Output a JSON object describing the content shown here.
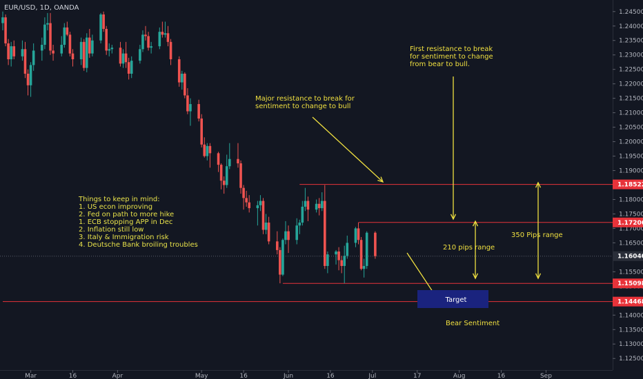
{
  "chart_data": {
    "type": "candlestick",
    "title": "EUR/USD, 1D, OANDA",
    "ylim": [
      1.121,
      1.249
    ],
    "y_ticks": [
      1.245,
      1.24,
      1.235,
      1.23,
      1.225,
      1.22,
      1.215,
      1.21,
      1.205,
      1.2,
      1.195,
      1.19,
      1.185,
      1.18,
      1.175,
      1.17,
      1.165,
      1.16,
      1.155,
      1.15,
      1.145,
      1.14,
      1.135,
      1.13,
      1.125
    ],
    "y_tick_labels": [
      "1.24500",
      "1.24000",
      "1.23500",
      "1.23000",
      "1.22500",
      "1.22000",
      "1.21500",
      "1.21000",
      "1.20500",
      "1.20000",
      "1.19500",
      "1.19000",
      "1.18500",
      "1.18000",
      "1.17500",
      "1.17000",
      "1.16500",
      "1.16000",
      "1.15500",
      "1.15000",
      "1.14500",
      "1.14000",
      "1.13500",
      "1.13000",
      "1.12500"
    ],
    "x_range": [
      "2018-02-19",
      "2018-09-10"
    ],
    "x_ticks": [
      {
        "date": "2018-03-01",
        "label": "Mar"
      },
      {
        "date": "2018-03-16",
        "label": "16"
      },
      {
        "date": "2018-04-01",
        "label": "Apr"
      },
      {
        "date": "2018-05-01",
        "label": "May"
      },
      {
        "date": "2018-05-16",
        "label": "16"
      },
      {
        "date": "2018-06-01",
        "label": "Jun"
      },
      {
        "date": "2018-06-16",
        "label": "16"
      },
      {
        "date": "2018-07-01",
        "label": "Jul"
      },
      {
        "date": "2018-07-17",
        "label": "17"
      },
      {
        "date": "2018-08-01",
        "label": "Aug"
      },
      {
        "date": "2018-08-16",
        "label": "16"
      },
      {
        "date": "2018-09-01",
        "label": "Sep"
      }
    ],
    "grid": false,
    "current_price": {
      "value": 1.1604,
      "label": "1.16040",
      "color": "#5b5f6b"
    },
    "levels": [
      {
        "value": 1.18522,
        "label": "1.18522",
        "start": "2018-06-05"
      },
      {
        "value": 1.17206,
        "label": "1.17206",
        "start": "2018-06-26"
      },
      {
        "value": 1.15098,
        "label": "1.15098",
        "start": "2018-05-30"
      },
      {
        "value": 1.14468,
        "label": "1.14468",
        "start": "2018-02-19"
      }
    ],
    "level_color": "#e8333a",
    "up_color": "#26a69a",
    "down_color": "#ef5350",
    "candles": [
      {
        "d": "2018-02-19",
        "o": 1.241,
        "h": 1.245,
        "l": 1.2385,
        "c": 1.243
      },
      {
        "d": "2018-02-20",
        "o": 1.243,
        "h": 1.244,
        "l": 1.233,
        "c": 1.234
      },
      {
        "d": "2018-02-21",
        "o": 1.234,
        "h": 1.2355,
        "l": 1.2265,
        "c": 1.2285
      },
      {
        "d": "2018-02-22",
        "o": 1.2285,
        "h": 1.2345,
        "l": 1.226,
        "c": 1.233
      },
      {
        "d": "2018-02-23",
        "o": 1.233,
        "h": 1.235,
        "l": 1.2285,
        "c": 1.2295
      },
      {
        "d": "2018-02-26",
        "o": 1.2295,
        "h": 1.235,
        "l": 1.228,
        "c": 1.232
      },
      {
        "d": "2018-02-27",
        "o": 1.232,
        "h": 1.2345,
        "l": 1.222,
        "c": 1.2235
      },
      {
        "d": "2018-02-28",
        "o": 1.2235,
        "h": 1.225,
        "l": 1.216,
        "c": 1.2195
      },
      {
        "d": "2018-03-01",
        "o": 1.2195,
        "h": 1.2275,
        "l": 1.2155,
        "c": 1.2265
      },
      {
        "d": "2018-03-02",
        "o": 1.2265,
        "h": 1.234,
        "l": 1.2245,
        "c": 1.2315
      },
      {
        "d": "2018-03-05",
        "o": 1.2315,
        "h": 1.236,
        "l": 1.228,
        "c": 1.2335
      },
      {
        "d": "2018-03-06",
        "o": 1.2335,
        "h": 1.243,
        "l": 1.232,
        "c": 1.2405
      },
      {
        "d": "2018-03-07",
        "o": 1.2405,
        "h": 1.2445,
        "l": 1.2385,
        "c": 1.241
      },
      {
        "d": "2018-03-08",
        "o": 1.241,
        "h": 1.2445,
        "l": 1.23,
        "c": 1.2315
      },
      {
        "d": "2018-03-09",
        "o": 1.2315,
        "h": 1.2335,
        "l": 1.228,
        "c": 1.2305
      },
      {
        "d": "2018-03-12",
        "o": 1.2305,
        "h": 1.2365,
        "l": 1.2295,
        "c": 1.2335
      },
      {
        "d": "2018-03-13",
        "o": 1.2335,
        "h": 1.241,
        "l": 1.2325,
        "c": 1.2395
      },
      {
        "d": "2018-03-14",
        "o": 1.2395,
        "h": 1.2415,
        "l": 1.2365,
        "c": 1.237
      },
      {
        "d": "2018-03-15",
        "o": 1.237,
        "h": 1.238,
        "l": 1.2295,
        "c": 1.2305
      },
      {
        "d": "2018-03-16",
        "o": 1.2305,
        "h": 1.232,
        "l": 1.226,
        "c": 1.2285
      },
      {
        "d": "2018-03-19",
        "o": 1.2285,
        "h": 1.236,
        "l": 1.2265,
        "c": 1.2345
      },
      {
        "d": "2018-03-20",
        "o": 1.2345,
        "h": 1.2355,
        "l": 1.2245,
        "c": 1.2255
      },
      {
        "d": "2018-03-21",
        "o": 1.2255,
        "h": 1.2375,
        "l": 1.224,
        "c": 1.236
      },
      {
        "d": "2018-03-22",
        "o": 1.236,
        "h": 1.239,
        "l": 1.229,
        "c": 1.2305
      },
      {
        "d": "2018-03-23",
        "o": 1.2305,
        "h": 1.237,
        "l": 1.2295,
        "c": 1.235
      },
      {
        "d": "2018-03-26",
        "o": 1.235,
        "h": 1.2445,
        "l": 1.234,
        "c": 1.244
      },
      {
        "d": "2018-03-27",
        "o": 1.244,
        "h": 1.245,
        "l": 1.238,
        "c": 1.239
      },
      {
        "d": "2018-03-28",
        "o": 1.239,
        "h": 1.24,
        "l": 1.23,
        "c": 1.2315
      },
      {
        "d": "2018-03-29",
        "o": 1.2315,
        "h": 1.234,
        "l": 1.2295,
        "c": 1.232
      },
      {
        "d": "2018-03-30",
        "o": 1.232,
        "h": 1.2335,
        "l": 1.2305,
        "c": 1.2325
      },
      {
        "d": "2018-04-02",
        "o": 1.2325,
        "h": 1.2345,
        "l": 1.226,
        "c": 1.227
      },
      {
        "d": "2018-04-03",
        "o": 1.227,
        "h": 1.232,
        "l": 1.2255,
        "c": 1.2305
      },
      {
        "d": "2018-04-04",
        "o": 1.2305,
        "h": 1.2345,
        "l": 1.2255,
        "c": 1.2275
      },
      {
        "d": "2018-04-05",
        "o": 1.2275,
        "h": 1.229,
        "l": 1.2215,
        "c": 1.2235
      },
      {
        "d": "2018-04-06",
        "o": 1.2235,
        "h": 1.2295,
        "l": 1.222,
        "c": 1.228
      },
      {
        "d": "2018-04-09",
        "o": 1.228,
        "h": 1.2335,
        "l": 1.227,
        "c": 1.232
      },
      {
        "d": "2018-04-10",
        "o": 1.232,
        "h": 1.2385,
        "l": 1.231,
        "c": 1.237
      },
      {
        "d": "2018-04-11",
        "o": 1.237,
        "h": 1.24,
        "l": 1.235,
        "c": 1.2365
      },
      {
        "d": "2018-04-12",
        "o": 1.2365,
        "h": 1.238,
        "l": 1.2315,
        "c": 1.2325
      },
      {
        "d": "2018-04-13",
        "o": 1.2325,
        "h": 1.2345,
        "l": 1.2305,
        "c": 1.233
      },
      {
        "d": "2018-04-16",
        "o": 1.233,
        "h": 1.2395,
        "l": 1.232,
        "c": 1.238
      },
      {
        "d": "2018-04-17",
        "o": 1.238,
        "h": 1.2415,
        "l": 1.236,
        "c": 1.237
      },
      {
        "d": "2018-04-18",
        "o": 1.237,
        "h": 1.2415,
        "l": 1.236,
        "c": 1.2375
      },
      {
        "d": "2018-04-19",
        "o": 1.2375,
        "h": 1.24,
        "l": 1.233,
        "c": 1.2345
      },
      {
        "d": "2018-04-20",
        "o": 1.2345,
        "h": 1.2355,
        "l": 1.2265,
        "c": 1.2285
      },
      {
        "d": "2018-04-23",
        "o": 1.2285,
        "h": 1.2295,
        "l": 1.219,
        "c": 1.2205
      },
      {
        "d": "2018-04-24",
        "o": 1.2205,
        "h": 1.2245,
        "l": 1.218,
        "c": 1.2235
      },
      {
        "d": "2018-04-25",
        "o": 1.2235,
        "h": 1.224,
        "l": 1.215,
        "c": 1.216
      },
      {
        "d": "2018-04-26",
        "o": 1.216,
        "h": 1.2185,
        "l": 1.2095,
        "c": 1.2105
      },
      {
        "d": "2018-04-27",
        "o": 1.2105,
        "h": 1.215,
        "l": 1.2055,
        "c": 1.213
      },
      {
        "d": "2018-04-30",
        "o": 1.213,
        "h": 1.2145,
        "l": 1.207,
        "c": 1.208
      },
      {
        "d": "2018-05-01",
        "o": 1.208,
        "h": 1.2095,
        "l": 1.198,
        "c": 1.199
      },
      {
        "d": "2018-05-02",
        "o": 1.199,
        "h": 1.2015,
        "l": 1.1945,
        "c": 1.195
      },
      {
        "d": "2018-05-03",
        "o": 1.195,
        "h": 1.1995,
        "l": 1.1935,
        "c": 1.1985
      },
      {
        "d": "2018-05-04",
        "o": 1.1985,
        "h": 1.1995,
        "l": 1.191,
        "c": 1.196
      },
      {
        "d": "2018-05-07",
        "o": 1.196,
        "h": 1.1965,
        "l": 1.1895,
        "c": 1.192
      },
      {
        "d": "2018-05-08",
        "o": 1.192,
        "h": 1.1925,
        "l": 1.1835,
        "c": 1.1865
      },
      {
        "d": "2018-05-09",
        "o": 1.1865,
        "h": 1.188,
        "l": 1.182,
        "c": 1.185
      },
      {
        "d": "2018-05-10",
        "o": 1.185,
        "h": 1.1955,
        "l": 1.184,
        "c": 1.1915
      },
      {
        "d": "2018-05-11",
        "o": 1.1915,
        "h": 1.1995,
        "l": 1.1905,
        "c": 1.194
      },
      {
        "d": "2018-05-14",
        "o": 1.194,
        "h": 1.1995,
        "l": 1.191,
        "c": 1.1925
      },
      {
        "d": "2018-05-15",
        "o": 1.1925,
        "h": 1.1935,
        "l": 1.182,
        "c": 1.184
      },
      {
        "d": "2018-05-16",
        "o": 1.184,
        "h": 1.185,
        "l": 1.1765,
        "c": 1.1805
      },
      {
        "d": "2018-05-17",
        "o": 1.1805,
        "h": 1.183,
        "l": 1.1775,
        "c": 1.179
      },
      {
        "d": "2018-05-18",
        "o": 1.179,
        "h": 1.1815,
        "l": 1.1755,
        "c": 1.177
      },
      {
        "d": "2018-05-21",
        "o": 1.177,
        "h": 1.1795,
        "l": 1.171,
        "c": 1.178
      },
      {
        "d": "2018-05-22",
        "o": 1.178,
        "h": 1.1815,
        "l": 1.176,
        "c": 1.1795
      },
      {
        "d": "2018-05-23",
        "o": 1.1795,
        "h": 1.1805,
        "l": 1.168,
        "c": 1.1695
      },
      {
        "d": "2018-05-24",
        "o": 1.1695,
        "h": 1.175,
        "l": 1.168,
        "c": 1.172
      },
      {
        "d": "2018-05-25",
        "o": 1.172,
        "h": 1.174,
        "l": 1.1645,
        "c": 1.1655
      },
      {
        "d": "2018-05-28",
        "o": 1.1655,
        "h": 1.169,
        "l": 1.161,
        "c": 1.1625
      },
      {
        "d": "2018-05-29",
        "o": 1.1625,
        "h": 1.1635,
        "l": 1.151,
        "c": 1.154
      },
      {
        "d": "2018-05-30",
        "o": 1.154,
        "h": 1.1665,
        "l": 1.1535,
        "c": 1.166
      },
      {
        "d": "2018-05-31",
        "o": 1.166,
        "h": 1.1725,
        "l": 1.1645,
        "c": 1.169
      },
      {
        "d": "2018-06-01",
        "o": 1.169,
        "h": 1.171,
        "l": 1.1615,
        "c": 1.166
      },
      {
        "d": "2018-06-04",
        "o": 1.166,
        "h": 1.1735,
        "l": 1.1645,
        "c": 1.171
      },
      {
        "d": "2018-06-05",
        "o": 1.171,
        "h": 1.173,
        "l": 1.168,
        "c": 1.172
      },
      {
        "d": "2018-06-06",
        "o": 1.172,
        "h": 1.1795,
        "l": 1.171,
        "c": 1.1775
      },
      {
        "d": "2018-06-07",
        "o": 1.1775,
        "h": 1.184,
        "l": 1.176,
        "c": 1.1795
      },
      {
        "d": "2018-06-08",
        "o": 1.1795,
        "h": 1.181,
        "l": 1.1725,
        "c": 1.1765
      },
      {
        "d": "2018-06-11",
        "o": 1.1765,
        "h": 1.18,
        "l": 1.1755,
        "c": 1.1785
      },
      {
        "d": "2018-06-12",
        "o": 1.1785,
        "h": 1.1805,
        "l": 1.1745,
        "c": 1.177
      },
      {
        "d": "2018-06-13",
        "o": 1.177,
        "h": 1.1825,
        "l": 1.176,
        "c": 1.1795
      },
      {
        "d": "2018-06-14",
        "o": 1.1795,
        "h": 1.185,
        "l": 1.156,
        "c": 1.157
      },
      {
        "d": "2018-06-15",
        "o": 1.157,
        "h": 1.162,
        "l": 1.1545,
        "c": 1.161
      },
      {
        "d": "2018-06-18",
        "o": 1.161,
        "h": 1.1625,
        "l": 1.1575,
        "c": 1.162
      },
      {
        "d": "2018-06-19",
        "o": 1.162,
        "h": 1.1635,
        "l": 1.1555,
        "c": 1.159
      },
      {
        "d": "2018-06-20",
        "o": 1.159,
        "h": 1.1605,
        "l": 1.1545,
        "c": 1.157
      },
      {
        "d": "2018-06-21",
        "o": 1.157,
        "h": 1.164,
        "l": 1.151,
        "c": 1.1605
      },
      {
        "d": "2018-06-22",
        "o": 1.1605,
        "h": 1.1675,
        "l": 1.1595,
        "c": 1.165
      },
      {
        "d": "2018-06-25",
        "o": 1.165,
        "h": 1.1705,
        "l": 1.1635,
        "c": 1.17
      },
      {
        "d": "2018-06-26",
        "o": 1.17,
        "h": 1.172,
        "l": 1.1645,
        "c": 1.166
      },
      {
        "d": "2018-06-27",
        "o": 1.166,
        "h": 1.167,
        "l": 1.1555,
        "c": 1.156
      },
      {
        "d": "2018-06-28",
        "o": 1.156,
        "h": 1.1595,
        "l": 1.153,
        "c": 1.157
      },
      {
        "d": "2018-06-29",
        "o": 1.157,
        "h": 1.169,
        "l": 1.156,
        "c": 1.1685
      },
      {
        "d": "2018-07-02",
        "o": 1.1685,
        "h": 1.169,
        "l": 1.1595,
        "c": 1.1604
      }
    ],
    "annotations": {
      "major_resistance": "Major resistance to break for\nsentiment to change to bull",
      "first_resistance": "First resistance to break\nfor sentiment to change\nfrom bear to bull.",
      "pips_210": "210 pips range",
      "pips_350": "350 Pips range",
      "target": "Target",
      "bear_sentiment": "Bear Sentiment",
      "notes": "Things to keep in mind:\n1. US econ improving\n2. Fed on path to more hike\n\n1. ECB stopping APP in Dec\n2. Inflation still low\n3. Italy & Immigration risk\n4. Deutsche Bank broiling troubles"
    },
    "annotation_color": "#f0e040",
    "target_box_color": "#1a237e"
  }
}
